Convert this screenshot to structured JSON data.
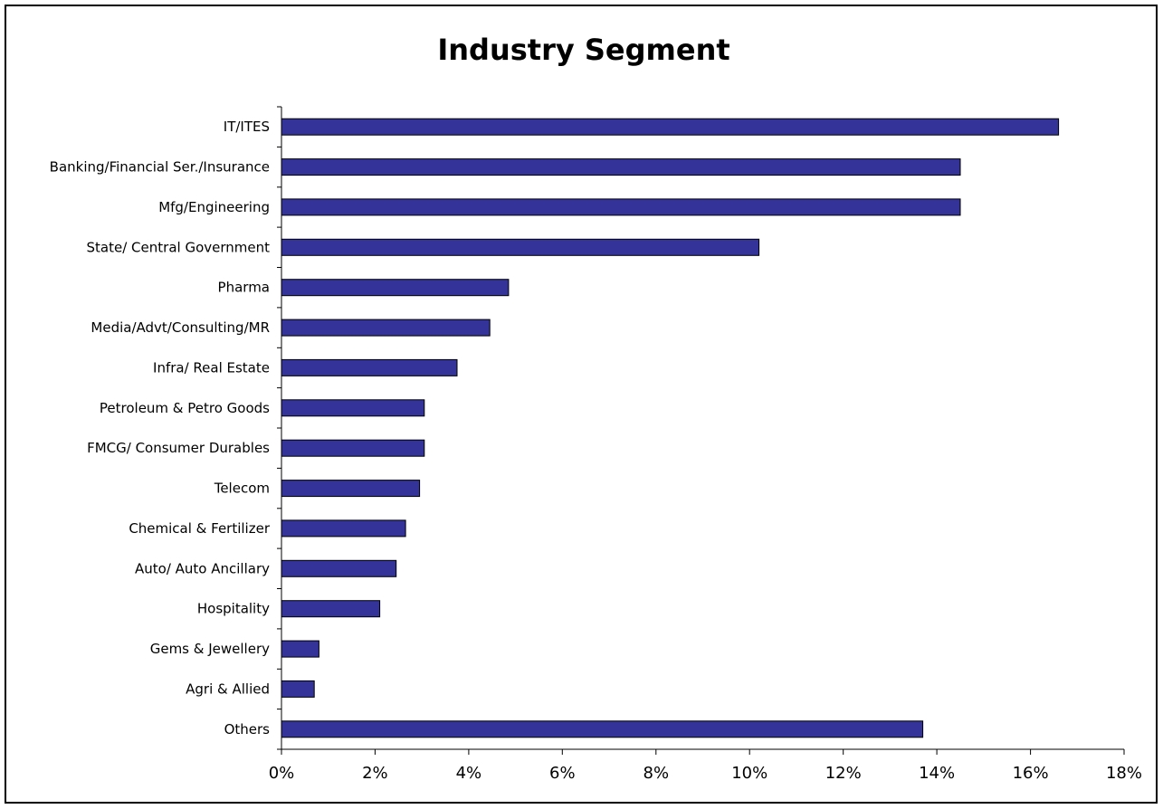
{
  "chart_data": {
    "type": "bar",
    "orientation": "horizontal",
    "title": "Industry Segment",
    "categories": [
      "IT/ITES",
      "Banking/Financial Ser./Insurance",
      "Mfg/Engineering",
      "State/ Central Government",
      "Pharma",
      "Media/Advt/Consulting/MR",
      "Infra/ Real Estate",
      "Petroleum & Petro Goods",
      "FMCG/ Consumer Durables",
      "Telecom",
      "Chemical & Fertilizer",
      "Auto/ Auto Ancillary",
      "Hospitality",
      "Gems & Jewellery",
      "Agri & Allied",
      "Others"
    ],
    "values": [
      16.6,
      14.5,
      14.5,
      10.2,
      4.85,
      4.45,
      3.75,
      3.05,
      3.05,
      2.95,
      2.65,
      2.45,
      2.1,
      0.8,
      0.7,
      13.7
    ],
    "xlim": [
      0,
      18
    ],
    "xticks": [
      0,
      2,
      4,
      6,
      8,
      10,
      12,
      14,
      16,
      18
    ],
    "tick_suffix": "%",
    "bar_color": "#333399",
    "bar_edge_color": "#000000",
    "grid": false,
    "legend": "none"
  }
}
